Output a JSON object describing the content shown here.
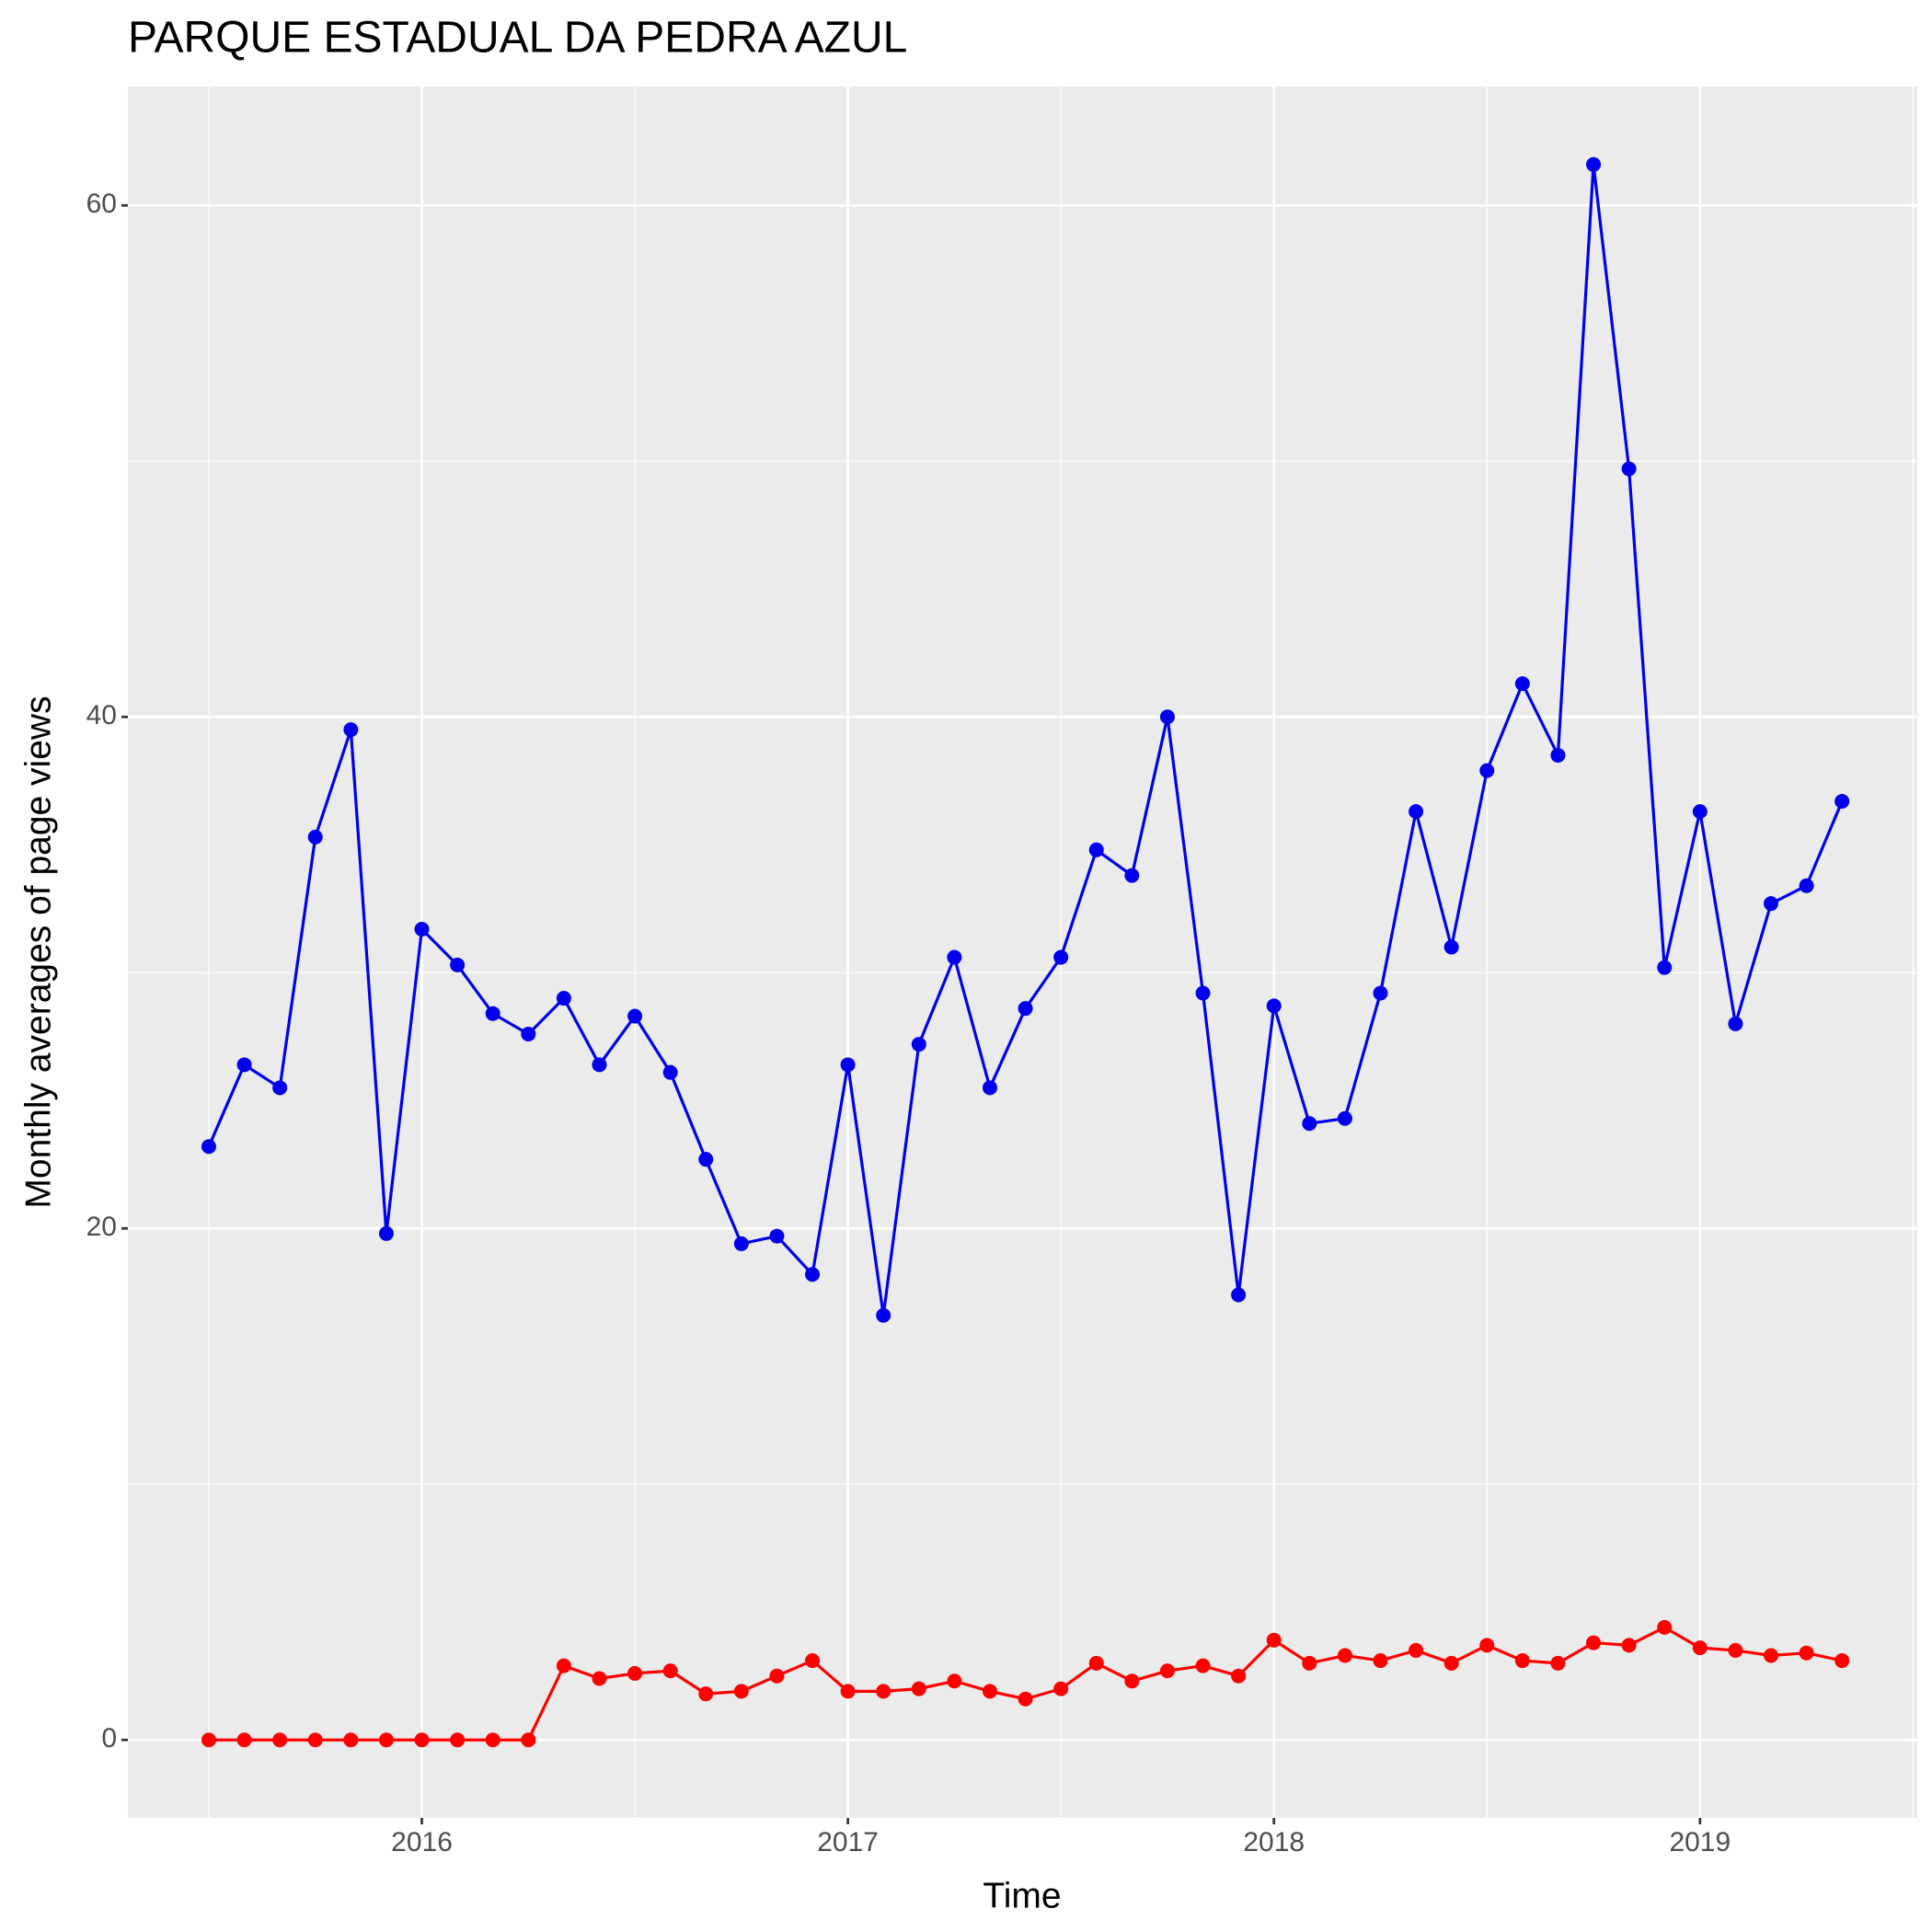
{
  "chart_data": {
    "type": "line",
    "title": "PARQUE ESTADUAL DA PEDRA AZUL",
    "x_label": "Time",
    "y_label": "Monthly averages of page views",
    "x": [
      "2015-07",
      "2015-08",
      "2015-09",
      "2015-10",
      "2015-11",
      "2015-12",
      "2016-01",
      "2016-02",
      "2016-03",
      "2016-04",
      "2016-05",
      "2016-06",
      "2016-07",
      "2016-08",
      "2016-09",
      "2016-10",
      "2016-11",
      "2016-12",
      "2017-01",
      "2017-02",
      "2017-03",
      "2017-04",
      "2017-05",
      "2017-06",
      "2017-07",
      "2017-08",
      "2017-09",
      "2017-10",
      "2017-11",
      "2017-12",
      "2018-01",
      "2018-02",
      "2018-03",
      "2018-04",
      "2018-05",
      "2018-06",
      "2018-07",
      "2018-08",
      "2018-09",
      "2018-10",
      "2018-11",
      "2018-12",
      "2019-01",
      "2019-02",
      "2019-03",
      "2019-04",
      "2019-05"
    ],
    "series": [
      {
        "color": "#0000ee",
        "values": [
          23.2,
          26.4,
          25.5,
          35.3,
          39.5,
          19.8,
          31.7,
          30.3,
          28.4,
          27.6,
          29.0,
          26.4,
          28.3,
          26.1,
          22.7,
          19.4,
          19.7,
          18.2,
          26.4,
          16.6,
          27.2,
          30.6,
          25.5,
          28.6,
          30.6,
          34.8,
          33.8,
          40.0,
          29.2,
          17.4,
          28.7,
          24.1,
          24.3,
          29.2,
          36.3,
          31.0,
          37.9,
          41.3,
          38.5,
          61.6,
          49.7,
          30.2,
          36.3,
          28.0,
          32.7,
          33.4,
          36.7
        ]
      },
      {
        "color": "#ff0000",
        "values": [
          0,
          0,
          0,
          0,
          0,
          0,
          0,
          0,
          0,
          0,
          2.9,
          2.4,
          2.6,
          2.7,
          1.8,
          1.9,
          2.5,
          3.1,
          1.9,
          1.9,
          2.0,
          2.3,
          1.9,
          1.6,
          2.0,
          3.0,
          2.3,
          2.7,
          2.9,
          2.5,
          3.9,
          3.0,
          3.3,
          3.1,
          3.5,
          3.0,
          3.7,
          3.1,
          3.0,
          3.8,
          3.7,
          4.4,
          3.6,
          3.5,
          3.3,
          3.4,
          3.1
        ]
      }
    ],
    "xlim": [
      2015.31,
      2019.51
    ],
    "xticks": [
      2016,
      2017,
      2018,
      2019
    ],
    "xminorticks": [
      2015.5,
      2016.5,
      2017.5,
      2018.5,
      2019.5
    ],
    "ylim": [
      -3.05,
      64.65
    ],
    "yticks": [
      0,
      20,
      40,
      60
    ],
    "yminorticks": [
      10,
      30,
      50
    ],
    "grid": true
  }
}
